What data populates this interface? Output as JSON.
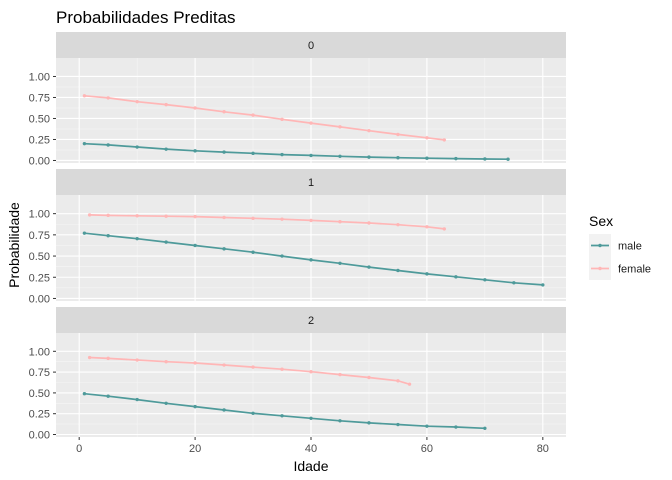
{
  "chart_data": {
    "type": "line",
    "title": "Probabilidades Preditas",
    "xlabel": "Idade",
    "ylabel": "Probabilidade",
    "xlim": [
      -4,
      84
    ],
    "ylim": [
      -0.03,
      1.22
    ],
    "x_ticks": [
      0,
      20,
      40,
      60,
      80
    ],
    "x_tick_labels": [
      "0",
      "20",
      "40",
      "60",
      "80"
    ],
    "y_ticks": [
      0,
      0.25,
      0.5,
      0.75,
      1.0
    ],
    "y_tick_labels": [
      "0.00",
      "0.25",
      "0.50",
      "0.75",
      "1.00"
    ],
    "grid": true,
    "legend": {
      "title": "Sex",
      "position": "right",
      "entries": [
        "male",
        "female"
      ]
    },
    "colors": {
      "male": "#4e9a9a",
      "female": "#ffb6b6",
      "panel_bg": "#ebebeb",
      "strip_bg": "#d9d9d9",
      "grid_major": "#ffffff"
    },
    "panels": [
      {
        "label": "0",
        "series": [
          {
            "name": "male",
            "x": [
              0.9,
              5,
              10,
              15,
              20,
              25,
              30,
              35,
              40,
              45,
              50,
              55,
              60,
              65,
              70,
              74
            ],
            "y": [
              0.2,
              0.185,
              0.16,
              0.135,
              0.115,
              0.1,
              0.085,
              0.07,
              0.06,
              0.05,
              0.04,
              0.033,
              0.027,
              0.022,
              0.018,
              0.015
            ]
          },
          {
            "name": "female",
            "x": [
              0.9,
              5,
              10,
              15,
              20,
              25,
              30,
              35,
              40,
              45,
              50,
              55,
              60,
              63
            ],
            "y": [
              0.77,
              0.745,
              0.7,
              0.665,
              0.625,
              0.58,
              0.54,
              0.49,
              0.445,
              0.4,
              0.355,
              0.31,
              0.27,
              0.245
            ]
          }
        ]
      },
      {
        "label": "1",
        "series": [
          {
            "name": "male",
            "x": [
              0.9,
              5,
              10,
              15,
              20,
              25,
              30,
              35,
              40,
              45,
              50,
              55,
              60,
              65,
              70,
              75,
              80
            ],
            "y": [
              0.77,
              0.74,
              0.705,
              0.665,
              0.625,
              0.585,
              0.545,
              0.5,
              0.455,
              0.415,
              0.37,
              0.33,
              0.29,
              0.255,
              0.22,
              0.185,
              0.16
            ]
          },
          {
            "name": "female",
            "x": [
              1.8,
              5,
              10,
              15,
              20,
              25,
              30,
              35,
              40,
              45,
              50,
              55,
              60,
              63
            ],
            "y": [
              0.985,
              0.98,
              0.975,
              0.97,
              0.965,
              0.955,
              0.945,
              0.935,
              0.92,
              0.905,
              0.89,
              0.87,
              0.845,
              0.82
            ]
          }
        ]
      },
      {
        "label": "2",
        "series": [
          {
            "name": "male",
            "x": [
              0.9,
              5,
              10,
              15,
              20,
              25,
              30,
              35,
              40,
              45,
              50,
              55,
              60,
              65,
              70
            ],
            "y": [
              0.49,
              0.46,
              0.42,
              0.375,
              0.335,
              0.295,
              0.255,
              0.225,
              0.195,
              0.165,
              0.14,
              0.12,
              0.1,
              0.09,
              0.075
            ]
          },
          {
            "name": "female",
            "x": [
              1.8,
              5,
              10,
              15,
              20,
              25,
              30,
              35,
              40,
              45,
              50,
              55,
              57
            ],
            "y": [
              0.925,
              0.915,
              0.895,
              0.875,
              0.86,
              0.835,
              0.81,
              0.785,
              0.755,
              0.72,
              0.685,
              0.645,
              0.605
            ]
          }
        ]
      }
    ]
  }
}
